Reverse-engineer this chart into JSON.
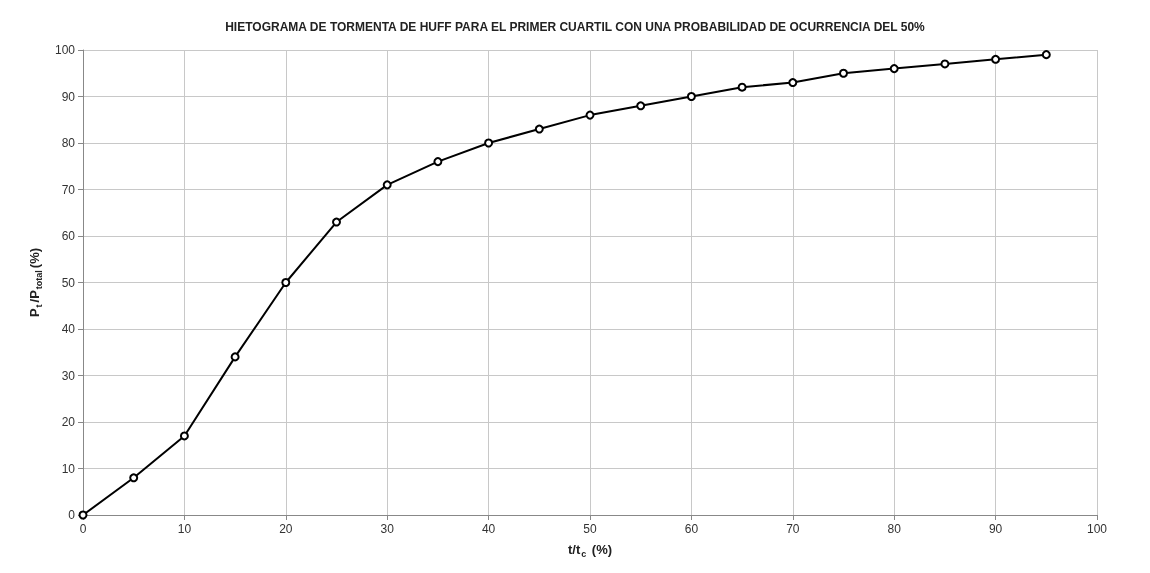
{
  "chart_data": {
    "type": "line",
    "title": "HIETOGRAMA DE TORMENTA DE HUFF PARA EL PRIMER CUARTIL CON UNA PROBABILIDAD DE OCURRENCIA DEL 50%",
    "xlabel": "t/t$_{c}$ (%)",
    "ylabel": "P$_{t}$/P$_{total}$(%)",
    "x": [
      0,
      5,
      10,
      15,
      20,
      25,
      30,
      35,
      40,
      45,
      50,
      55,
      60,
      65,
      70,
      75,
      80,
      85,
      90,
      95
    ],
    "series": [
      {
        "color": "#000000",
        "values": [
          0,
          8,
          17,
          34,
          50,
          63,
          71,
          76,
          80,
          83,
          86,
          88,
          90,
          92,
          93,
          95,
          96,
          97,
          98,
          99
        ]
      }
    ],
    "xlim": [
      0,
      100
    ],
    "xticks": [
      0,
      10,
      20,
      30,
      40,
      50,
      60,
      70,
      80,
      90,
      100
    ],
    "ylim": [
      0,
      100
    ],
    "yticks": [
      0,
      10,
      20,
      30,
      40,
      50,
      60,
      70,
      80,
      90,
      100
    ],
    "grid": true,
    "marker": "circle",
    "line_style": "solid"
  }
}
